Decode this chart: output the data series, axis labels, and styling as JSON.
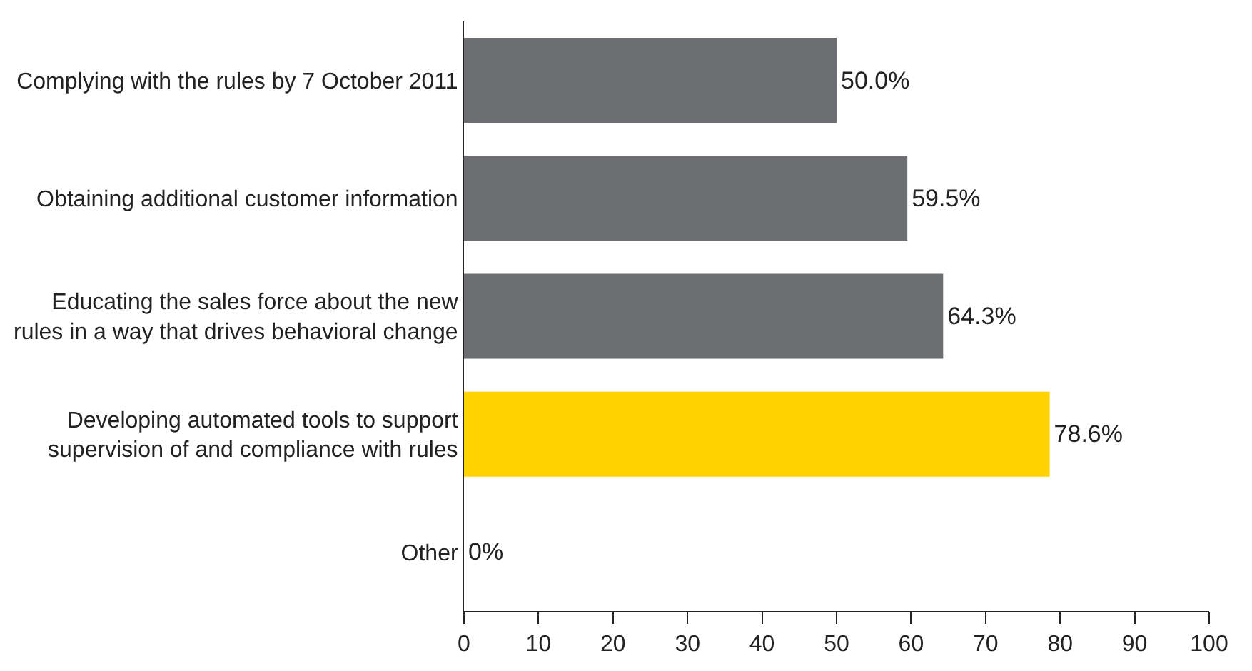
{
  "chart_data": {
    "type": "bar",
    "orientation": "horizontal",
    "categories": [
      "Complying with the rules by 7 October 2011",
      "Obtaining additional customer information",
      "Educating the sales force about the new rules in a way that drives behavioral change",
      "Developing automated tools to support supervision of and compliance with rules",
      "Other"
    ],
    "values": [
      50.0,
      59.5,
      64.3,
      78.6,
      0
    ],
    "colors": [
      "#6d6e71",
      "#6d6e71",
      "#6d6e71",
      "#ffd200",
      "#6d6e71"
    ],
    "value_labels": [
      "50.0%",
      "59.5%",
      "64.3%",
      "78.6%",
      "0%"
    ],
    "xlim": [
      0,
      100
    ],
    "xticks": [
      0,
      10,
      20,
      30,
      40,
      50,
      60,
      70,
      80,
      90,
      100
    ],
    "legend": false
  }
}
